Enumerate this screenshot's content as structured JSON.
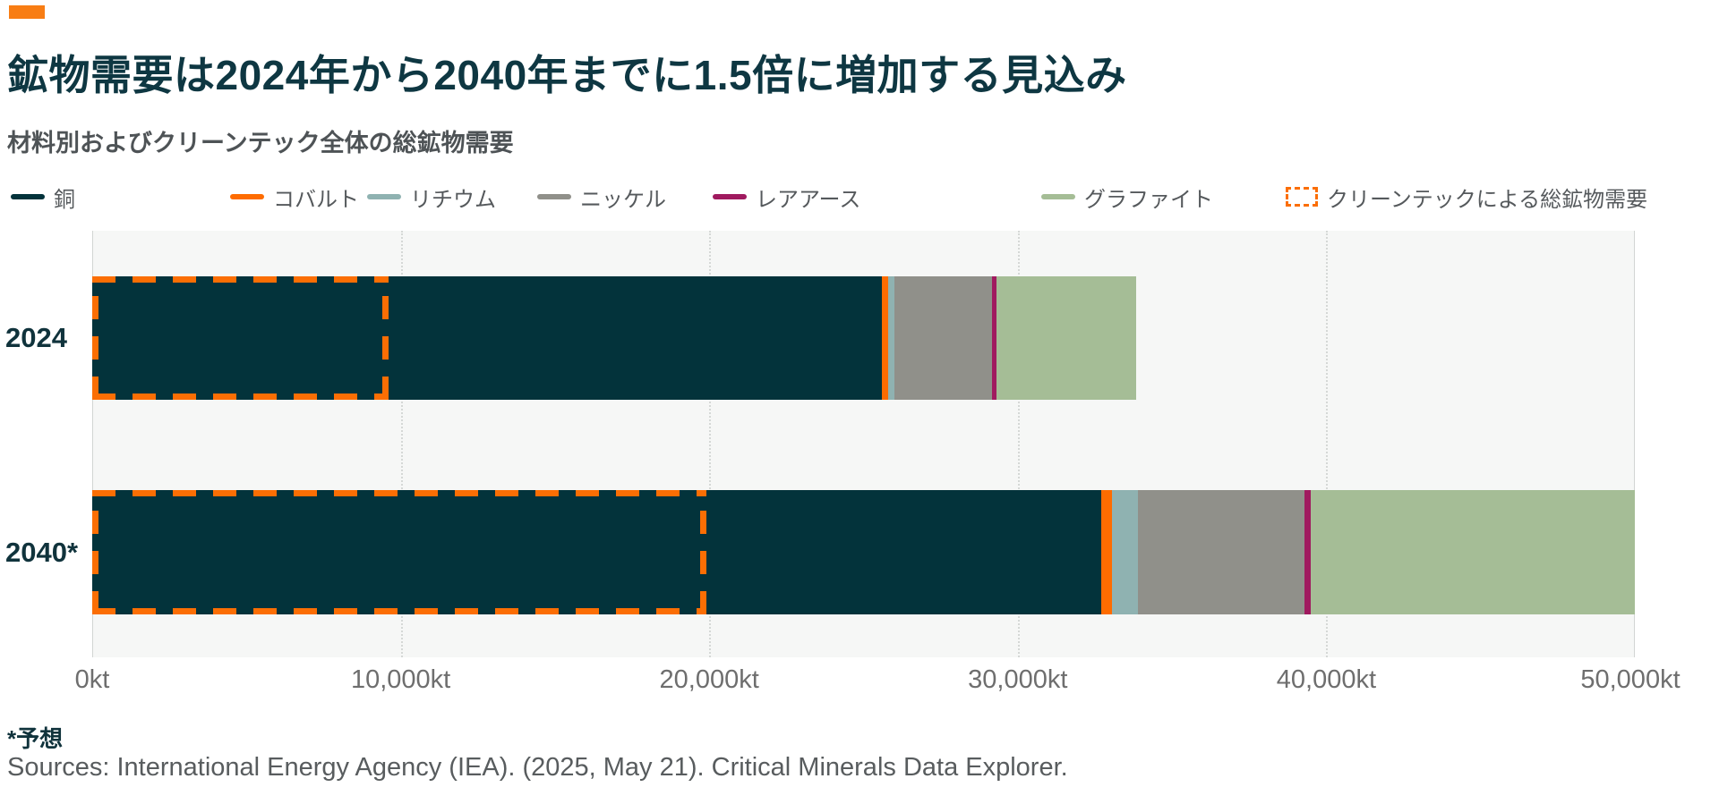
{
  "header": {
    "kicker_color": "#f87d14",
    "title": "鉱物需要は2024年から2040年までに1.5倍に増加する見込み",
    "title_color": "#0e3742",
    "subtitle": "材料別およびクリーンテック全体の総鉱物需要",
    "subtitle_color": "#4e5356"
  },
  "chart_data": {
    "type": "bar",
    "orientation": "horizontal-stacked",
    "unit": "kt",
    "categories": [
      "2024",
      "2040*"
    ],
    "series": [
      {
        "name": "銅",
        "color": "#03333b",
        "values": [
          25600,
          32700
        ]
      },
      {
        "name": "コバルト",
        "color": "#fe6c00",
        "values": [
          200,
          350
        ]
      },
      {
        "name": "リチウム",
        "color": "#8fb2b1",
        "values": [
          200,
          850
        ]
      },
      {
        "name": "ニッケル",
        "color": "#90908a",
        "values": [
          3150,
          5400
        ]
      },
      {
        "name": "レアアース",
        "color": "#a01a5f",
        "values": [
          150,
          200
        ]
      },
      {
        "name": "グラファイト",
        "color": "#a5bd96",
        "values": [
          4550,
          10500
        ]
      }
    ],
    "totals": [
      33850,
      50000
    ],
    "cleantech_overlay": {
      "label": "クリーンテックによる総鉱物需要",
      "color": "#fb6e04",
      "values": [
        9600,
        19900
      ]
    },
    "x_axis": {
      "min": 0,
      "max": 50000,
      "tick_interval": 10000,
      "tick_labels": [
        "0kt",
        "10,000kt",
        "20,000kt",
        "30,000kt",
        "40,000kt",
        "50,000kt"
      ]
    },
    "grid": "vertical-dotted",
    "legend_position": "top",
    "plot_background": "#f6f7f6"
  },
  "footer": {
    "note": "*予想",
    "sources": "Sources: International Energy Agency (IEA). (2025, May 21). Critical Minerals Data Explorer."
  }
}
